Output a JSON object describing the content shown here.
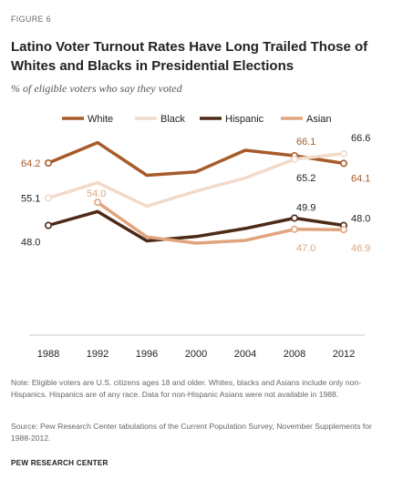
{
  "figure_label": "FIGURE 6",
  "title": "Latino Voter Turnout Rates Have Long Trailed Those of Whites and Blacks in Presidential Elections",
  "subtitle": "% of eligible voters who say they voted",
  "note": "Note: Eligible voters are U.S. citizens ages 18 and older. Whites, blacks and Asians include only non-Hispanics. Hispanics are of any race. Data for non-Hispanic Asians were not available in 1988.",
  "source": "Source: Pew Research Center tabulations of the Current Population Survey, November Supplements for 1988-2012.",
  "organization": "PEW RESEARCH CENTER",
  "chart_data": {
    "type": "line",
    "x": [
      1988,
      1992,
      1996,
      2000,
      2004,
      2008,
      2012
    ],
    "ylim": [
      20,
      72
    ],
    "legend_position": "top",
    "series": [
      {
        "name": "White",
        "color": "#a65b29",
        "values": [
          64.2,
          69.5,
          61.0,
          61.9,
          67.5,
          66.1,
          64.1
        ]
      },
      {
        "name": "Black",
        "color": "#f2dac9",
        "values": [
          55.1,
          59.1,
          53.0,
          56.9,
          60.3,
          65.2,
          66.6
        ]
      },
      {
        "name": "Hispanic",
        "color": "#4d2a16",
        "values": [
          48.0,
          51.6,
          44.0,
          45.1,
          47.2,
          49.9,
          48.0
        ]
      },
      {
        "name": "Asian",
        "color": "#e0a57d",
        "values": [
          null,
          54.0,
          45.0,
          43.4,
          44.1,
          47.0,
          46.9
        ]
      }
    ],
    "data_labels": [
      {
        "text": "64.2",
        "series": "White",
        "x": 1988
      },
      {
        "text": "55.1",
        "series": "Black",
        "x": 1988
      },
      {
        "text": "48.0",
        "series": "Hispanic",
        "x": 1988
      },
      {
        "text": "54.0",
        "series": "Asian",
        "x": 1992
      },
      {
        "text": "66.1",
        "series": "White",
        "x": 2008
      },
      {
        "text": "65.2",
        "series": "Black",
        "x": 2008
      },
      {
        "text": "49.9",
        "series": "Hispanic",
        "x": 2008
      },
      {
        "text": "47.0",
        "series": "Asian",
        "x": 2008
      },
      {
        "text": "66.6",
        "series": "Black",
        "x": 2012
      },
      {
        "text": "64.1",
        "series": "White",
        "x": 2012
      },
      {
        "text": "48.0",
        "series": "Hispanic",
        "x": 2012
      },
      {
        "text": "46.9",
        "series": "Asian",
        "x": 2012
      }
    ]
  }
}
